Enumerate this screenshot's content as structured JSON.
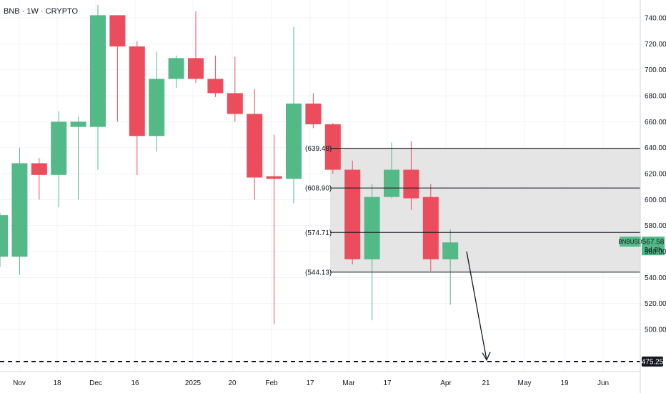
{
  "chart_data": {
    "type": "candlestick",
    "title": "BNB · 1W · CRYPTO",
    "y_ticks": [
      500,
      520,
      540,
      560,
      580,
      600,
      620,
      640,
      660,
      680,
      700,
      720,
      740
    ],
    "y_tick_labels": [
      "500.00",
      "520.00",
      "540.00",
      "560.00",
      "580.00",
      "600.00",
      "620.00",
      "640.00",
      "660.00",
      "680.00",
      "700.00",
      "720.00",
      "740.00"
    ],
    "ylim": [
      472,
      748
    ],
    "x_labels": [
      "Nov",
      "18",
      "Dec",
      "16",
      "2025",
      "20",
      "Feb",
      "17",
      "Mar",
      "17",
      "Apr",
      "21",
      "May",
      "19",
      "Jun"
    ],
    "candles": [
      {
        "date": "2024-10-28",
        "open": 556,
        "high": 590,
        "low": 548,
        "close": 588
      },
      {
        "date": "2024-11-04",
        "open": 556,
        "high": 640,
        "low": 542,
        "close": 628
      },
      {
        "date": "2024-11-11",
        "open": 628,
        "high": 632,
        "low": 600,
        "close": 619
      },
      {
        "date": "2024-11-18",
        "open": 619,
        "high": 668,
        "low": 594,
        "close": 660
      },
      {
        "date": "2024-11-25",
        "open": 656,
        "high": 664,
        "low": 600,
        "close": 660
      },
      {
        "date": "2024-12-02",
        "open": 656,
        "high": 750,
        "low": 623,
        "close": 742
      },
      {
        "date": "2024-12-09",
        "open": 742,
        "high": 742,
        "low": 660,
        "close": 718
      },
      {
        "date": "2024-12-16",
        "open": 718,
        "high": 722,
        "low": 619,
        "close": 649
      },
      {
        "date": "2024-12-23",
        "open": 649,
        "high": 714,
        "low": 637,
        "close": 693
      },
      {
        "date": "2024-12-30",
        "open": 693,
        "high": 711,
        "low": 686,
        "close": 709
      },
      {
        "date": "2025-01-06",
        "open": 709,
        "high": 745,
        "low": 690,
        "close": 693
      },
      {
        "date": "2025-01-13",
        "open": 693,
        "high": 711,
        "low": 679,
        "close": 682
      },
      {
        "date": "2025-01-20",
        "open": 682,
        "high": 710,
        "low": 660,
        "close": 666
      },
      {
        "date": "2025-01-27",
        "open": 666,
        "high": 685,
        "low": 600,
        "close": 617
      },
      {
        "date": "2025-02-03",
        "open": 618,
        "high": 650,
        "low": 504,
        "close": 616
      },
      {
        "date": "2025-02-10",
        "open": 616,
        "high": 733,
        "low": 597,
        "close": 674
      },
      {
        "date": "2025-02-17",
        "open": 674,
        "high": 682,
        "low": 655,
        "close": 658
      },
      {
        "date": "2025-02-24",
        "open": 658,
        "high": 659,
        "low": 620,
        "close": 623
      },
      {
        "date": "2025-03-03",
        "open": 623,
        "high": 630,
        "low": 550,
        "close": 554
      },
      {
        "date": "2025-03-10",
        "open": 554,
        "high": 612,
        "low": 507,
        "close": 602
      },
      {
        "date": "2025-03-17",
        "open": 602,
        "high": 644,
        "low": 601,
        "close": 623
      },
      {
        "date": "2025-03-24",
        "open": 623,
        "high": 645,
        "low": 592,
        "close": 601
      },
      {
        "date": "2025-03-31",
        "open": 602,
        "high": 612,
        "low": 545,
        "close": 554
      },
      {
        "date": "2025-04-07",
        "open": 554,
        "high": 577,
        "low": 519,
        "close": 567
      }
    ],
    "levels": [
      {
        "label": "(639.48)",
        "value": 639.48
      },
      {
        "label": "(608.90)",
        "value": 608.9
      },
      {
        "label": "(574.71)",
        "value": 574.71
      },
      {
        "label": "(544.13)",
        "value": 544.13
      }
    ],
    "target": {
      "label": "475.25",
      "value": 475.25
    },
    "current_price": {
      "symbol": "BNBUSD",
      "price": "567.58",
      "countdown": "3d 8h",
      "value": 567.58
    },
    "colors": {
      "up": "#53b987",
      "down": "#eb4d5c",
      "zone": "#e0e0e0",
      "grid": "#f0f3fa",
      "line": "#131722"
    }
  }
}
